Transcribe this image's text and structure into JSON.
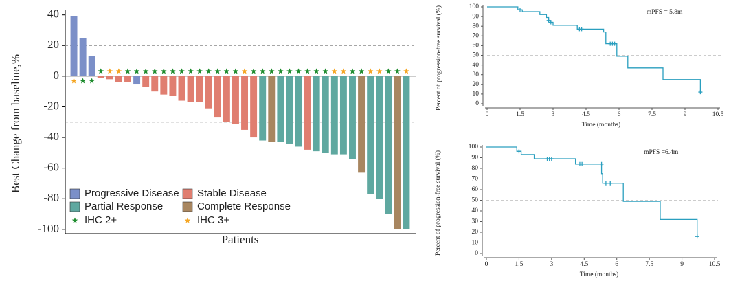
{
  "chart_data": [
    {
      "type": "waterfall",
      "y_label": "Best Change from baseline,%",
      "x_label": "Patients",
      "ylim": [
        -105,
        43
      ],
      "yticks": [
        40,
        20,
        0,
        -20,
        -40,
        -60,
        -80,
        -100
      ],
      "reference_lines": [
        20,
        -30
      ],
      "legend": "lower left",
      "series": [
        {
          "name": "Progressive Disease",
          "color": "#7b8fc8",
          "values": [
            39,
            25,
            13,
            null,
            null,
            null,
            null,
            -5,
            null,
            null,
            null,
            null,
            null,
            null,
            null,
            null,
            null,
            null,
            null,
            null,
            null,
            null,
            null,
            null,
            null,
            null,
            null,
            null,
            null,
            null,
            null,
            null,
            null,
            null,
            null,
            null,
            null,
            null
          ]
        },
        {
          "name": "Stable Disease",
          "color": "#e07e70",
          "values": [
            null,
            null,
            null,
            -1,
            -2,
            -4,
            -4,
            null,
            -7,
            -10,
            -12,
            -13,
            -16,
            -17,
            -17,
            -21,
            -27,
            -30,
            -31,
            -35,
            -40,
            null,
            null,
            null,
            null,
            null,
            -48,
            null,
            null,
            null,
            null,
            null,
            null,
            null,
            null,
            null,
            null,
            null
          ]
        },
        {
          "name": "Partial Response",
          "color": "#5fa8a0",
          "values": [
            null,
            null,
            null,
            null,
            null,
            null,
            null,
            null,
            null,
            null,
            null,
            null,
            null,
            null,
            null,
            null,
            null,
            null,
            null,
            null,
            null,
            -42,
            null,
            -43,
            -44,
            -46,
            null,
            -49,
            -50,
            -51,
            -51,
            -54,
            null,
            -77,
            -80,
            -90,
            null,
            -100
          ]
        },
        {
          "name": "Complete Response",
          "color": "#a88660",
          "values": [
            null,
            null,
            null,
            null,
            null,
            null,
            null,
            null,
            null,
            null,
            null,
            null,
            null,
            null,
            null,
            null,
            null,
            null,
            null,
            null,
            null,
            null,
            -43,
            null,
            null,
            null,
            null,
            null,
            null,
            null,
            null,
            null,
            -63,
            null,
            null,
            null,
            -100,
            null
          ]
        }
      ],
      "markers": [
        {
          "name": "IHC 2+",
          "color": "#1e8c2e",
          "shown": [
            false,
            true,
            true,
            true,
            false,
            false,
            true,
            true,
            true,
            true,
            true,
            true,
            true,
            true,
            true,
            true,
            true,
            true,
            true,
            false,
            true,
            true,
            true,
            true,
            true,
            true,
            true,
            true,
            true,
            false,
            false,
            true,
            true,
            false,
            false,
            true,
            true,
            false
          ]
        },
        {
          "name": "IHC 3+",
          "color": "#f5a623",
          "shown": [
            true,
            false,
            false,
            false,
            true,
            true,
            false,
            false,
            false,
            false,
            false,
            false,
            false,
            false,
            false,
            false,
            false,
            false,
            false,
            true,
            false,
            false,
            false,
            false,
            false,
            false,
            false,
            false,
            false,
            true,
            true,
            false,
            false,
            true,
            true,
            false,
            false,
            true
          ]
        }
      ]
    },
    {
      "type": "step",
      "y_label": "Percent of progression-free survival (%)",
      "x_label": "Time (months)",
      "annotation": "mPFS = 5.8m",
      "color": "#2a9fbf",
      "xlim": [
        0,
        10.5
      ],
      "xticks": [
        0,
        1.5,
        3,
        4.5,
        6,
        7.5,
        9,
        10.5
      ],
      "ylim": [
        0,
        100
      ],
      "yticks": [
        0,
        10,
        20,
        30,
        40,
        50,
        60,
        70,
        80,
        90,
        100
      ],
      "reference_lines": [
        50
      ],
      "x": [
        0,
        1.4,
        1.6,
        2.4,
        2.7,
        2.8,
        2.9,
        3.0,
        4.1,
        5.3,
        5.4,
        5.9,
        6.4,
        8.0,
        9.7
      ],
      "values": [
        100,
        97,
        95,
        92,
        89,
        86,
        84,
        81,
        77,
        74,
        62,
        49,
        37,
        25,
        12
      ],
      "censored_x": [
        1.5,
        2.8,
        2.9,
        4.2,
        4.3,
        5.6,
        5.7,
        5.8,
        9.7
      ],
      "censored_values": [
        97,
        86,
        84,
        77,
        77,
        62,
        62,
        62,
        12
      ]
    },
    {
      "type": "step",
      "y_label": "Percent of progression-free survival (%)",
      "x_label": "Time (months)",
      "annotation": "mPFS =6.4m",
      "color": "#2a9fbf",
      "xlim": [
        0,
        10.5
      ],
      "xticks": [
        0,
        1.5,
        3,
        4.5,
        6,
        7.5,
        9,
        10.5
      ],
      "ylim": [
        0,
        100
      ],
      "yticks": [
        0,
        10,
        20,
        30,
        40,
        50,
        60,
        70,
        80,
        90,
        100
      ],
      "reference_lines": [
        50
      ],
      "x": [
        0,
        1.4,
        1.6,
        2.2,
        4.1,
        5.3,
        5.35,
        6.3,
        8.0,
        9.7
      ],
      "values": [
        100,
        96,
        93,
        89,
        84,
        75,
        66,
        49,
        32,
        16
      ],
      "censored_x": [
        1.5,
        2.8,
        2.9,
        3.0,
        4.3,
        4.4,
        5.3,
        5.5,
        5.7,
        9.7
      ],
      "censored_values": [
        96,
        89,
        89,
        89,
        84,
        84,
        84,
        66,
        66,
        16
      ]
    }
  ]
}
